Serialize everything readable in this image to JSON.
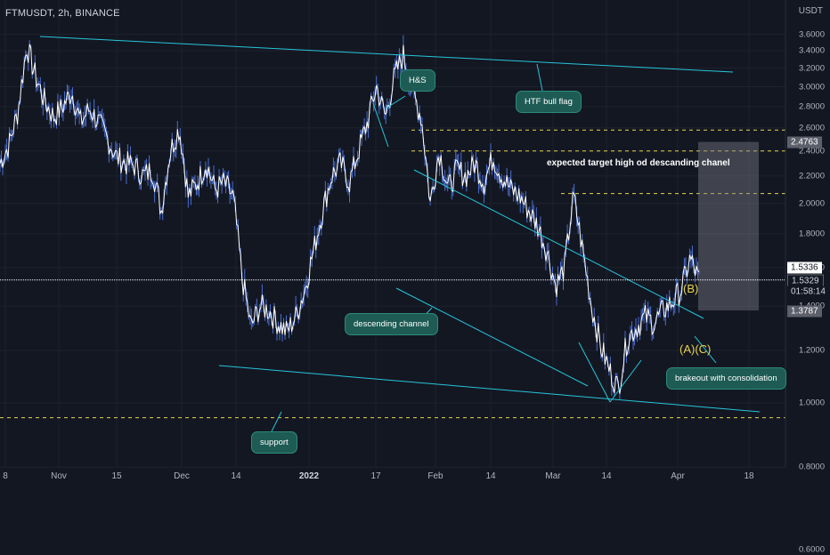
{
  "header": {
    "symbol": "FTMUSDT",
    "interval": "2h",
    "exchange": "BINANCE",
    "currency": "USDT"
  },
  "annotations": {
    "hs": "H&S",
    "htf_bull_flag": "HTF bull flag",
    "expected_target": "expected target high od descanding chanel",
    "descending_channel": "descending channel",
    "support": "support",
    "breakout": "brakeout with consolidation",
    "wave_b": "(B)",
    "wave_ac": "(A)(C)"
  },
  "price_tags": {
    "target": "2.4763",
    "upper": "1.5336",
    "last": "1.5329",
    "countdown": "01:58:14",
    "lower": "1.3787"
  },
  "colors": {
    "background": "#131722",
    "trendline": "#26c6da",
    "dashed_level": "#e8d44d",
    "candles": "#ffffff",
    "wave_label": "#e8d44d",
    "note_bg": "#1e5b54"
  },
  "chart_data": {
    "type": "line",
    "title": "",
    "xlabel": "",
    "ylabel": "",
    "y_axis": {
      "ticks": [
        "3.6000",
        "3.4000",
        "3.2000",
        "3.0000",
        "2.8000",
        "2.6000",
        "2.4000",
        "2.2000",
        "2.0000",
        "1.8000",
        "1.6000",
        "1.4000",
        "1.2000",
        "1.0000",
        "0.8000",
        "0.6000"
      ],
      "tick_values": [
        3.6,
        3.4,
        3.2,
        3.0,
        2.8,
        2.6,
        2.4,
        2.2,
        2.0,
        1.8,
        1.6,
        1.4,
        1.2,
        1.0,
        0.8,
        0.6
      ],
      "scale": "log"
    },
    "x_axis": {
      "ticks": [
        "8",
        "Nov",
        "15",
        "Dec",
        "14",
        "2022",
        "17",
        "Feb",
        "14",
        "Mar",
        "14",
        "Apr",
        "18"
      ],
      "bold_ticks": [
        "2022"
      ]
    },
    "ylim": [
      0.59,
      3.62
    ],
    "series": [
      {
        "values": [
          2.3,
          2.45,
          2.75,
          3.45,
          3.1,
          2.85,
          2.7,
          2.8,
          2.95,
          2.65,
          2.78,
          2.65,
          2.5,
          2.35,
          2.3,
          2.28,
          2.2,
          2.25,
          1.95,
          2.4,
          2.6,
          2.05,
          2.15,
          2.3,
          2.1,
          2.15,
          2.05,
          1.55,
          1.3,
          1.4,
          1.38,
          1.32,
          1.28,
          1.35,
          1.48,
          1.7,
          1.95,
          2.2,
          2.3,
          2.15,
          2.4,
          2.65,
          3.0,
          2.7,
          3.1,
          3.35,
          2.95,
          2.7,
          2.0,
          2.4,
          2.1,
          2.25,
          2.2,
          2.3,
          2.15,
          2.35,
          2.2,
          2.1,
          2.05,
          1.95,
          1.85,
          1.7,
          1.5,
          1.6,
          2.05,
          1.7,
          1.4,
          1.22,
          1.12,
          1.05,
          1.25,
          1.3,
          1.35,
          1.32,
          1.38,
          1.42,
          1.48,
          1.65,
          1.53
        ]
      }
    ],
    "levels": [
      {
        "label": "target_high",
        "value": 2.58
      },
      {
        "label": "level_2_4",
        "value": 2.4
      },
      {
        "label": "level_2_07",
        "value": 2.07
      },
      {
        "label": "support_level",
        "value": 0.95
      }
    ],
    "target_box": {
      "from": 1.3787,
      "to": 2.4763
    }
  }
}
